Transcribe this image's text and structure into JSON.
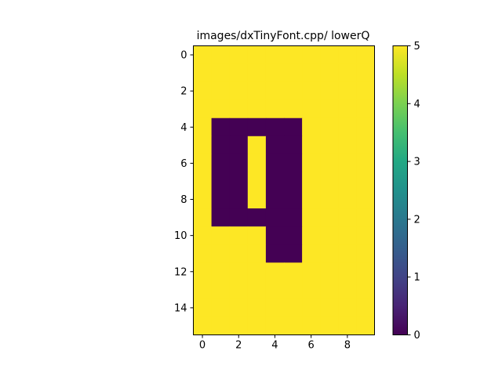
{
  "chart_data": {
    "type": "heatmap",
    "title": "images/dxTinyFont.cpp/ lowerQ",
    "xlabel": "",
    "ylabel": "",
    "x_ticks": [
      0,
      2,
      4,
      6,
      8
    ],
    "y_ticks": [
      0,
      2,
      4,
      6,
      8,
      10,
      12,
      14
    ],
    "colorbar_ticks": [
      0,
      1,
      2,
      3,
      4,
      5
    ],
    "vmin": 0,
    "vmax": 5,
    "colormap": "viridis",
    "colors": {
      "low": "#440154",
      "high": "#fde725"
    },
    "matrix": [
      [
        5,
        5,
        5,
        5,
        5,
        5,
        5,
        5,
        5,
        5
      ],
      [
        5,
        5,
        5,
        5,
        5,
        5,
        5,
        5,
        5,
        5
      ],
      [
        5,
        5,
        5,
        5,
        5,
        5,
        5,
        5,
        5,
        5
      ],
      [
        5,
        5,
        5,
        5,
        5,
        5,
        5,
        5,
        5,
        5
      ],
      [
        5,
        0,
        0,
        0,
        0,
        0,
        5,
        5,
        5,
        5
      ],
      [
        5,
        0,
        0,
        5,
        0,
        0,
        5,
        5,
        5,
        5
      ],
      [
        5,
        0,
        0,
        5,
        0,
        0,
        5,
        5,
        5,
        5
      ],
      [
        5,
        0,
        0,
        5,
        0,
        0,
        5,
        5,
        5,
        5
      ],
      [
        5,
        0,
        0,
        5,
        0,
        0,
        5,
        5,
        5,
        5
      ],
      [
        5,
        0,
        0,
        0,
        0,
        0,
        5,
        5,
        5,
        5
      ],
      [
        5,
        5,
        5,
        5,
        0,
        0,
        5,
        5,
        5,
        5
      ],
      [
        5,
        5,
        5,
        5,
        0,
        0,
        5,
        5,
        5,
        5
      ],
      [
        5,
        5,
        5,
        5,
        5,
        5,
        5,
        5,
        5,
        5
      ],
      [
        5,
        5,
        5,
        5,
        5,
        5,
        5,
        5,
        5,
        5
      ],
      [
        5,
        5,
        5,
        5,
        5,
        5,
        5,
        5,
        5,
        5
      ],
      [
        5,
        5,
        5,
        5,
        5,
        5,
        5,
        5,
        5,
        5
      ]
    ]
  }
}
